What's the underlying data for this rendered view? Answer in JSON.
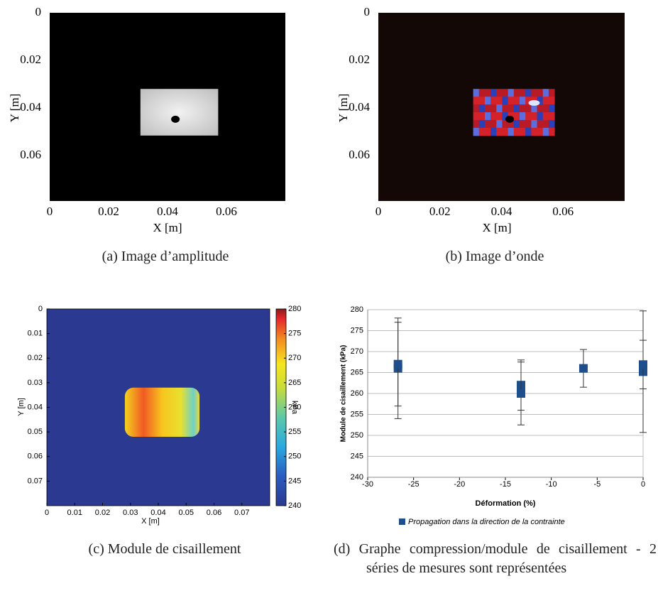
{
  "chart_data": [
    {
      "type": "image",
      "xlabel": "X [m]",
      "ylabel": "Y [m]",
      "xlim": [
        0,
        0.08
      ],
      "ylim": [
        0,
        0.08
      ],
      "y_reversed": true,
      "xticks": [
        0,
        0.02,
        0.04,
        0.06
      ],
      "yticks": [
        0,
        0.02,
        0.04,
        0.06
      ],
      "caption": "(a) Image d’amplitude"
    },
    {
      "type": "image",
      "xlabel": "X [m]",
      "ylabel": "Y [m]",
      "xlim": [
        0,
        0.08
      ],
      "ylim": [
        0,
        0.08
      ],
      "y_reversed": true,
      "xticks": [
        0,
        0.02,
        0.04,
        0.06
      ],
      "yticks": [
        0,
        0.02,
        0.04,
        0.06
      ],
      "caption": "(b) Image d’onde"
    },
    {
      "type": "heatmap",
      "xlabel": "X [m]",
      "ylabel": "Y [m]",
      "xlim": [
        0,
        0.08
      ],
      "ylim": [
        0,
        0.08
      ],
      "y_reversed": true,
      "xticks": [
        0,
        0.01,
        0.02,
        0.03,
        0.04,
        0.05,
        0.06,
        0.07
      ],
      "yticks": [
        0,
        0.01,
        0.02,
        0.03,
        0.04,
        0.05,
        0.06,
        0.07
      ],
      "colorbar": {
        "label": "kPa",
        "lim": [
          240,
          280
        ],
        "ticks": [
          240,
          245,
          250,
          255,
          260,
          265,
          270,
          275,
          280
        ]
      },
      "caption": "(c) Module de cisaillement"
    },
    {
      "type": "scatter",
      "xlabel": "Déformation (%)",
      "ylabel": "Module de cisaillement (kPa)",
      "xlim": [
        -30,
        0
      ],
      "ylim": [
        240,
        280
      ],
      "xticks": [
        -30,
        -25,
        -20,
        -15,
        -10,
        -5,
        0
      ],
      "yticks": [
        240,
        245,
        250,
        255,
        260,
        265,
        270,
        275,
        280
      ],
      "grid": true,
      "legend": "bottom",
      "series": [
        {
          "name": "Propagation dans la direction de la contrainte",
          "color": "#1f4e8c",
          "x": [
            -26.7,
            -26.7,
            -13.3,
            -13.3,
            -6.5,
            0,
            0
          ],
          "values": [
            266,
            267,
            262,
            260,
            266,
            265.2,
            266.9
          ],
          "errors": [
            12,
            10,
            6,
            7.5,
            4.5,
            14.5,
            5.8
          ]
        }
      ],
      "caption": "(d) Graphe compression/module de cisaillement - 2 séries de mesures sont représentées"
    }
  ]
}
